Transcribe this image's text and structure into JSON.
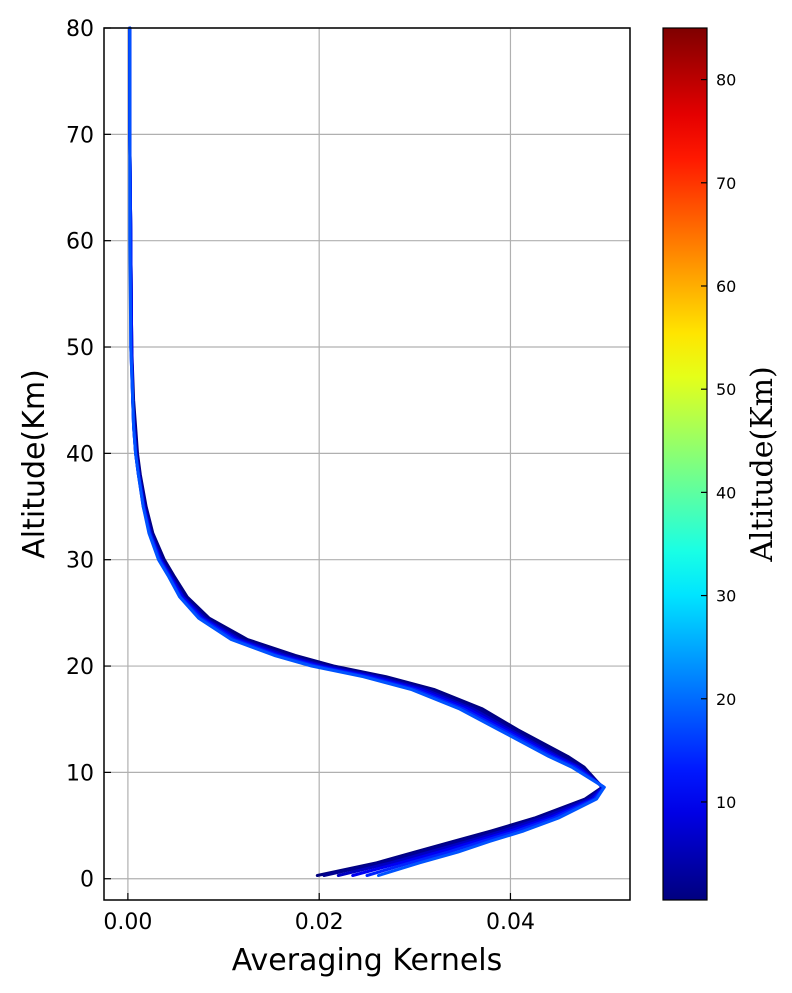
{
  "chart_data": {
    "type": "line",
    "xlabel": "Averaging Kernels",
    "ylabel": "Altitude(Km)",
    "xlim": [
      -0.0025,
      0.0525
    ],
    "ylim": [
      -2,
      80
    ],
    "xticks": [
      0.0,
      0.02,
      0.04
    ],
    "xtick_labels": [
      "0.00",
      "0.02",
      "0.04"
    ],
    "yticks": [
      0,
      10,
      20,
      30,
      40,
      50,
      60,
      70,
      80
    ],
    "ytick_labels": [
      "0",
      "10",
      "20",
      "30",
      "40",
      "50",
      "60",
      "70",
      "80"
    ],
    "grid": true,
    "colorbar": {
      "label": "Altitude(Km)",
      "colormap": "jet",
      "range": [
        0.5,
        85
      ],
      "ticks": [
        10,
        20,
        30,
        40,
        50,
        60,
        70,
        80
      ],
      "tick_labels": [
        "10",
        "20",
        "30",
        "40",
        "50",
        "60",
        "70",
        "80"
      ]
    },
    "colormap_stops": [
      "#00007f",
      "#0000ff",
      "#007fff",
      "#00ffff",
      "#7fff7f",
      "#ffff00",
      "#ff7f00",
      "#ff0000",
      "#7f0000"
    ],
    "series": [
      {
        "altitude": 0.2,
        "x": [
          0.0198,
          0.026,
          0.03,
          0.034,
          0.038,
          0.0425,
          0.0478,
          0.0496,
          0.0477,
          0.046,
          0.0408,
          0.037,
          0.032,
          0.027,
          0.0215,
          0.0175,
          0.0125,
          0.0085,
          0.0062,
          0.0048,
          0.0038,
          0.0026,
          0.0019,
          0.0013,
          0.001,
          0.0008,
          0.0006,
          0.0004,
          0.0003,
          0.0002,
          0.0002
        ],
        "y": [
          0.3,
          1.5,
          2.5,
          3.5,
          4.5,
          5.7,
          7.5,
          8.6,
          10.5,
          11.5,
          14.0,
          16.0,
          17.8,
          19.0,
          20.0,
          21.0,
          22.5,
          24.5,
          26.5,
          28.5,
          30.0,
          32.5,
          35.0,
          38.0,
          40.0,
          42.5,
          45.0,
          50.0,
          60.0,
          70.0,
          80.0
        ]
      },
      {
        "altitude": 2,
        "x": [
          0.0205,
          0.0265,
          0.0305,
          0.0345,
          0.0385,
          0.0428,
          0.048,
          0.0496,
          0.0475,
          0.0455,
          0.0405,
          0.0365,
          0.0315,
          0.0265,
          0.021,
          0.017,
          0.012,
          0.0082,
          0.006,
          0.0046,
          0.0036,
          0.0025,
          0.0018,
          0.0012,
          0.0009,
          0.0007,
          0.0005,
          0.0004,
          0.0003,
          0.0002,
          0.0002
        ],
        "y": [
          0.3,
          1.5,
          2.5,
          3.5,
          4.5,
          5.7,
          7.5,
          8.6,
          10.5,
          11.5,
          14.0,
          16.0,
          17.8,
          19.0,
          20.0,
          21.0,
          22.5,
          24.5,
          26.5,
          28.5,
          30.0,
          32.5,
          35.0,
          38.0,
          40.0,
          42.5,
          45.0,
          50.0,
          60.0,
          70.0,
          80.0
        ]
      },
      {
        "altitude": 6,
        "x": [
          0.022,
          0.0275,
          0.0315,
          0.0355,
          0.0392,
          0.0433,
          0.0483,
          0.0497,
          0.0472,
          0.045,
          0.04,
          0.036,
          0.031,
          0.026,
          0.0205,
          0.0165,
          0.0117,
          0.008,
          0.0058,
          0.0045,
          0.0035,
          0.0024,
          0.0017,
          0.0012,
          0.0009,
          0.0007,
          0.0005,
          0.0004,
          0.0003,
          0.0002,
          0.0002
        ],
        "y": [
          0.3,
          1.5,
          2.5,
          3.5,
          4.5,
          5.7,
          7.5,
          8.6,
          10.5,
          11.5,
          14.0,
          16.0,
          17.8,
          19.0,
          20.0,
          21.0,
          22.5,
          24.5,
          26.5,
          28.5,
          30.0,
          32.5,
          35.0,
          38.0,
          40.0,
          42.5,
          45.0,
          50.0,
          60.0,
          70.0,
          80.0
        ]
      },
      {
        "altitude": 10,
        "x": [
          0.0235,
          0.0285,
          0.0325,
          0.0363,
          0.04,
          0.044,
          0.0486,
          0.0497,
          0.047,
          0.0447,
          0.0396,
          0.0355,
          0.0305,
          0.0255,
          0.02,
          0.016,
          0.0114,
          0.0078,
          0.0057,
          0.0044,
          0.0034,
          0.0023,
          0.0017,
          0.0011,
          0.0008,
          0.0006,
          0.0005,
          0.0004,
          0.0003,
          0.0002,
          0.0002
        ],
        "y": [
          0.3,
          1.5,
          2.5,
          3.5,
          4.5,
          5.7,
          7.5,
          8.6,
          10.5,
          11.5,
          14.0,
          16.0,
          17.8,
          19.0,
          20.0,
          21.0,
          22.5,
          24.5,
          26.5,
          28.5,
          30.0,
          32.5,
          35.0,
          38.0,
          40.0,
          42.5,
          45.0,
          50.0,
          60.0,
          70.0,
          80.0
        ]
      },
      {
        "altitude": 14,
        "x": [
          0.025,
          0.0295,
          0.0335,
          0.037,
          0.0407,
          0.0445,
          0.0488,
          0.0498,
          0.0467,
          0.0443,
          0.0392,
          0.035,
          0.03,
          0.025,
          0.0196,
          0.0156,
          0.0111,
          0.0076,
          0.0055,
          0.0043,
          0.0033,
          0.0023,
          0.0016,
          0.0011,
          0.0008,
          0.0006,
          0.0005,
          0.0003,
          0.0003,
          0.0002,
          0.0002
        ],
        "y": [
          0.3,
          1.5,
          2.5,
          3.5,
          4.5,
          5.7,
          7.5,
          8.6,
          10.5,
          11.5,
          14.0,
          16.0,
          17.8,
          19.0,
          20.0,
          21.0,
          22.5,
          24.5,
          26.5,
          28.5,
          30.0,
          32.5,
          35.0,
          38.0,
          40.0,
          42.5,
          45.0,
          50.0,
          60.0,
          70.0,
          80.0
        ]
      },
      {
        "altitude": 18,
        "x": [
          0.0262,
          0.0305,
          0.0345,
          0.0378,
          0.0414,
          0.045,
          0.049,
          0.0498,
          0.0464,
          0.044,
          0.0388,
          0.0346,
          0.0296,
          0.0246,
          0.0192,
          0.0153,
          0.0108,
          0.0074,
          0.0054,
          0.0042,
          0.0032,
          0.0022,
          0.0016,
          0.0011,
          0.0008,
          0.0006,
          0.0005,
          0.0003,
          0.0002,
          0.0002,
          0.0002
        ],
        "y": [
          0.3,
          1.5,
          2.5,
          3.5,
          4.5,
          5.7,
          7.5,
          8.6,
          10.5,
          11.5,
          14.0,
          16.0,
          17.8,
          19.0,
          20.0,
          21.0,
          22.5,
          24.5,
          26.5,
          28.5,
          30.0,
          32.5,
          35.0,
          38.0,
          40.0,
          42.5,
          45.0,
          50.0,
          60.0,
          70.0,
          80.0
        ]
      }
    ]
  }
}
